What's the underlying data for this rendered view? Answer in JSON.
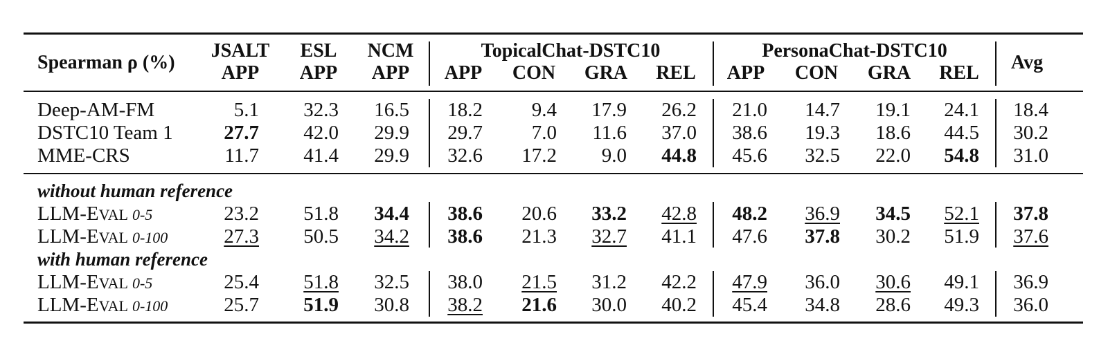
{
  "table": {
    "header": {
      "corner": "Spearman ρ (%)",
      "groups": {
        "topical": "TopicalChat-DSTC10",
        "persona": "PersonaChat-DSTC10"
      },
      "top": [
        "JSALT",
        "ESL",
        "NCM",
        "",
        "",
        "",
        "",
        "",
        "",
        "",
        "",
        "Avg"
      ],
      "bottom": [
        "APP",
        "APP",
        "APP",
        "APP",
        "CON",
        "GRA",
        "REL",
        "APP",
        "CON",
        "GRA",
        "REL",
        ""
      ]
    },
    "baseline_rows": [
      {
        "label": "Deep-AM-FM",
        "values": [
          "5.1",
          "32.3",
          "16.5",
          "18.2",
          "9.4",
          "17.9",
          "26.2",
          "21.0",
          "14.7",
          "19.1",
          "24.1",
          "18.4"
        ],
        "bold": [],
        "underline": []
      },
      {
        "label": "DSTC10 Team 1",
        "values": [
          "27.7",
          "42.0",
          "29.9",
          "29.7",
          "7.0",
          "11.6",
          "37.0",
          "38.6",
          "19.3",
          "18.6",
          "44.5",
          "30.2"
        ],
        "bold": [
          0
        ],
        "underline": []
      },
      {
        "label": "MME-CRS",
        "values": [
          "11.7",
          "41.4",
          "29.9",
          "32.6",
          "17.2",
          "9.0",
          "44.8",
          "45.6",
          "32.5",
          "22.0",
          "54.8",
          "31.0"
        ],
        "bold": [
          6,
          10
        ],
        "underline": []
      }
    ],
    "section_without": "without human reference",
    "without_rows": [
      {
        "label_main": "LLM-E",
        "label_sc": "VAL",
        "label_sub": "0-5",
        "values": [
          "23.2",
          "51.8",
          "34.4",
          "38.6",
          "20.6",
          "33.2",
          "42.8",
          "48.2",
          "36.9",
          "34.5",
          "52.1",
          "37.8"
        ],
        "bold": [
          2,
          3,
          5,
          7,
          9,
          11
        ],
        "underline": [
          6,
          8,
          10
        ]
      },
      {
        "label_main": "LLM-E",
        "label_sc": "VAL",
        "label_sub": "0-100",
        "values": [
          "27.3",
          "50.5",
          "34.2",
          "38.6",
          "21.3",
          "32.7",
          "41.1",
          "47.6",
          "37.8",
          "30.2",
          "51.9",
          "37.6"
        ],
        "bold": [
          3,
          8
        ],
        "underline": [
          0,
          2,
          5,
          11
        ]
      }
    ],
    "section_with": "with human reference",
    "with_rows": [
      {
        "label_main": "LLM-E",
        "label_sc": "VAL",
        "label_sub": "0-5",
        "values": [
          "25.4",
          "51.8",
          "32.5",
          "38.0",
          "21.5",
          "31.2",
          "42.2",
          "47.9",
          "36.0",
          "30.6",
          "49.1",
          "36.9"
        ],
        "bold": [],
        "underline": [
          1,
          4,
          7,
          9
        ]
      },
      {
        "label_main": "LLM-E",
        "label_sc": "VAL",
        "label_sub": "0-100",
        "values": [
          "25.7",
          "51.9",
          "30.8",
          "38.2",
          "21.6",
          "30.0",
          "40.2",
          "45.4",
          "34.8",
          "28.6",
          "49.3",
          "36.0"
        ],
        "bold": [
          1,
          4
        ],
        "underline": [
          3
        ]
      }
    ]
  }
}
